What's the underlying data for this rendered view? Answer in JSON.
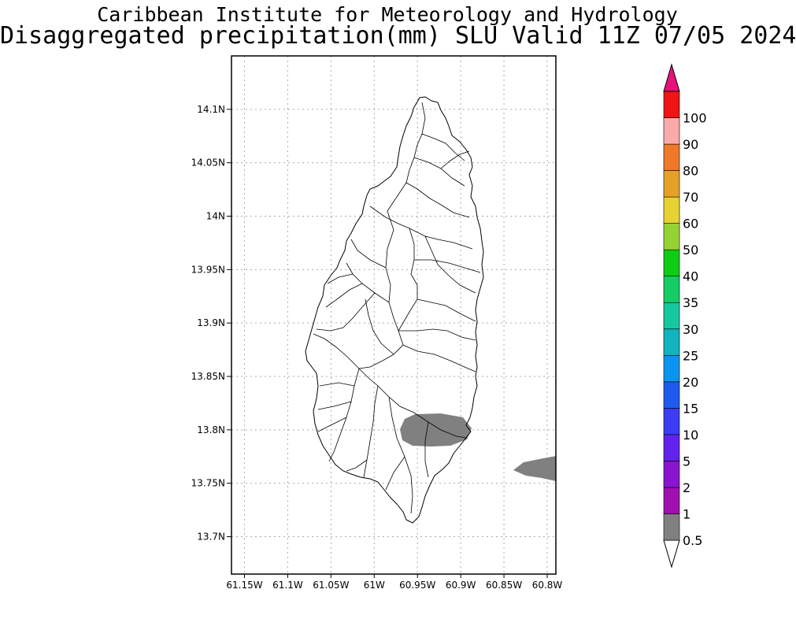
{
  "title_line1": "Caribbean Institute for Meteorology and Hydrology",
  "title_line2": "Disaggregated precipitation(mm) SLU Valid 11Z 07/05 2024",
  "map": {
    "lon_range": [
      -61.165,
      -60.79
    ],
    "lat_range": [
      13.665,
      14.15
    ],
    "lon_ticks": [
      {
        "value": -61.15,
        "label": "61.15W"
      },
      {
        "value": -61.1,
        "label": "61.1W"
      },
      {
        "value": -61.05,
        "label": "61.05W"
      },
      {
        "value": -61.0,
        "label": "61W"
      },
      {
        "value": -60.95,
        "label": "60.95W"
      },
      {
        "value": -60.9,
        "label": "60.9W"
      },
      {
        "value": -60.85,
        "label": "60.85W"
      },
      {
        "value": -60.8,
        "label": "60.8W"
      }
    ],
    "lat_ticks": [
      {
        "value": 14.1,
        "label": "14.1N"
      },
      {
        "value": 14.05,
        "label": "14.05N"
      },
      {
        "value": 14.0,
        "label": "14N"
      },
      {
        "value": 13.95,
        "label": "13.95N"
      },
      {
        "value": 13.9,
        "label": "13.9N"
      },
      {
        "value": 13.85,
        "label": "13.85N"
      },
      {
        "value": 13.8,
        "label": "13.8N"
      },
      {
        "value": 13.75,
        "label": "13.75N"
      },
      {
        "value": 13.7,
        "label": "13.7N"
      }
    ],
    "grid": "dotted",
    "precip_areas": [
      {
        "class": "0.5-1",
        "color": "#808080",
        "location": "south-east Saint Lucia"
      },
      {
        "class": "0.5-1",
        "color": "#808080",
        "location": "offshore east edge"
      }
    ]
  },
  "colorbar": {
    "labels": [
      "0.5",
      "1",
      "2",
      "5",
      "10",
      "15",
      "20",
      "25",
      "30",
      "35",
      "40",
      "50",
      "60",
      "70",
      "80",
      "90",
      "100"
    ],
    "colors": [
      "#808080",
      "#a010b0",
      "#8a14d0",
      "#6222ee",
      "#3c3cf5",
      "#1e5af0",
      "#0a96f0",
      "#12b4be",
      "#16c8a0",
      "#14cd64",
      "#0fcd14",
      "#96d232",
      "#e6d232",
      "#e6a028",
      "#f07828",
      "#faaaaa",
      "#f01414",
      "#fa4646",
      "#e6147a"
    ]
  }
}
